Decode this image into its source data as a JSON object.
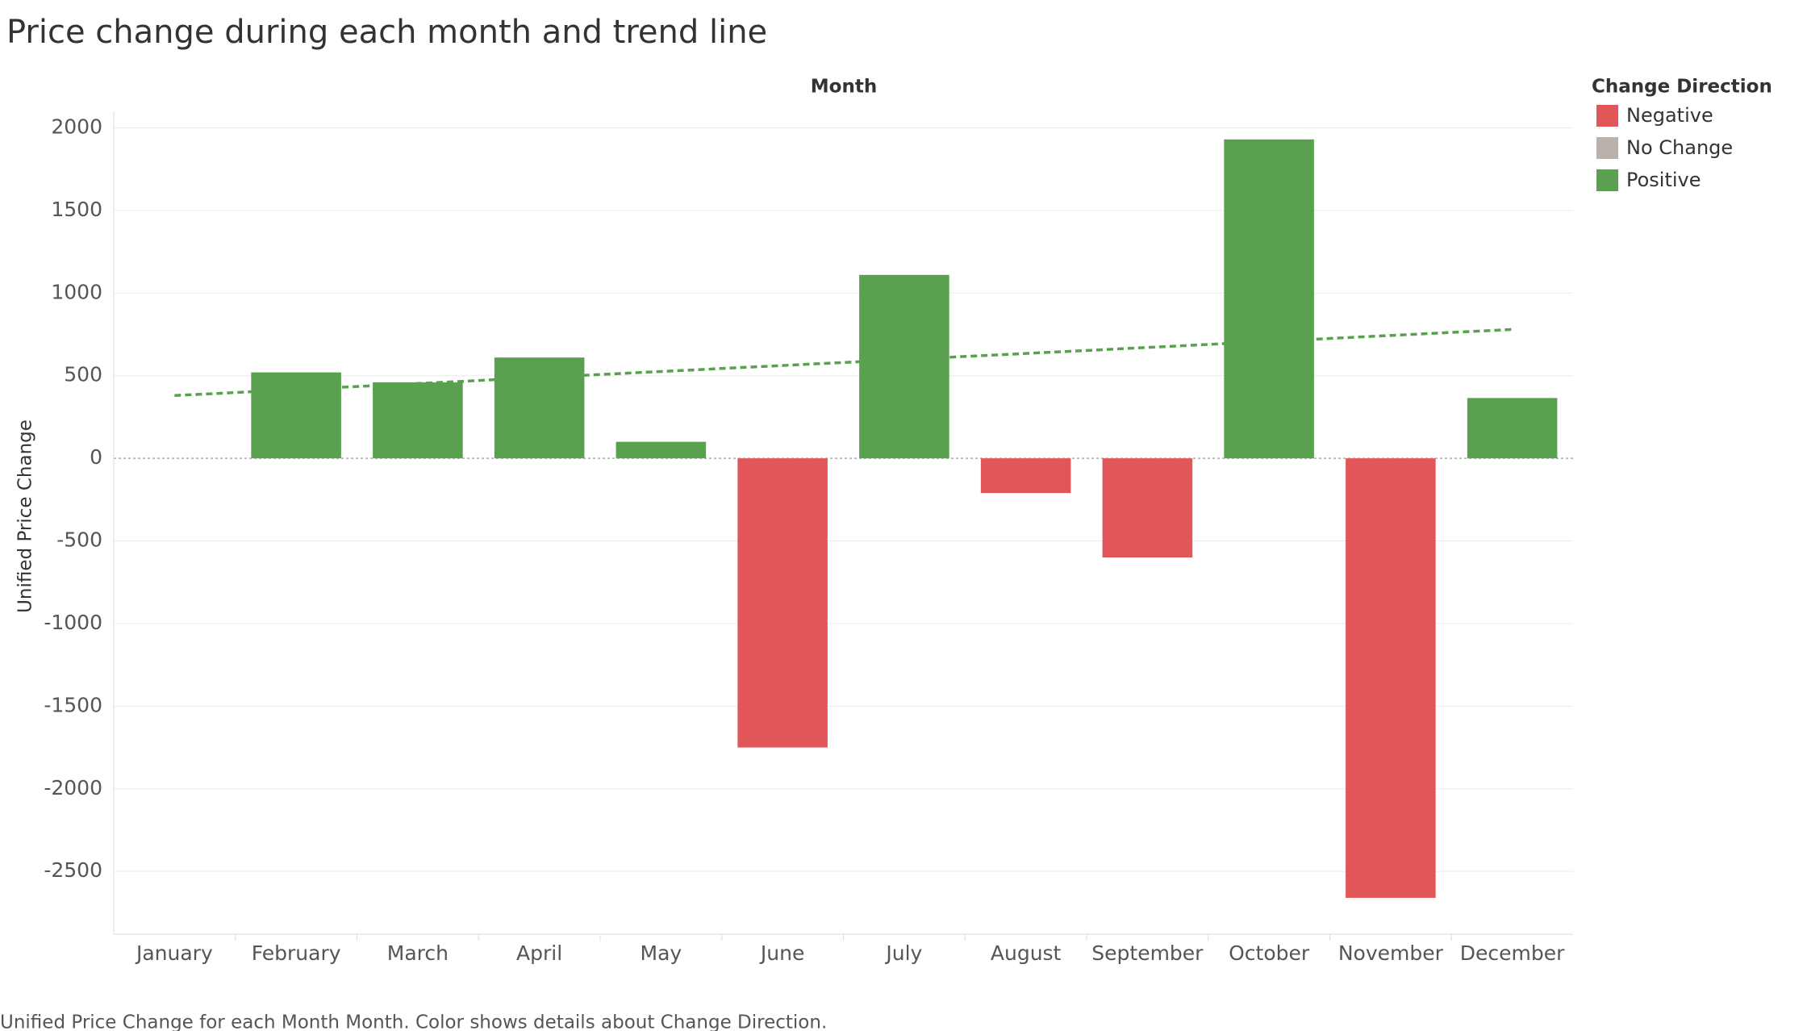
{
  "chart_data": {
    "type": "bar",
    "title": "Price change during each month  and trend line",
    "x_header": "Month",
    "y_label": "Unified Price Change",
    "caption": "Unified Price Change for each Month Month.  Color shows details about Change Direction.",
    "categories": [
      "January",
      "February",
      "March",
      "April",
      "May",
      "June",
      "July",
      "August",
      "September",
      "October",
      "November",
      "December"
    ],
    "values": [
      0,
      520,
      460,
      610,
      100,
      -1750,
      1110,
      -210,
      -600,
      1930,
      -2660,
      365
    ],
    "ylim": [
      -2880,
      2100
    ],
    "yticks": [
      -2500,
      -2000,
      -1500,
      -1000,
      -500,
      0,
      500,
      1000,
      1500,
      2000
    ],
    "grid": true,
    "legend_title": "Change Direction",
    "legend": [
      {
        "name": "Negative",
        "color": "#e15759"
      },
      {
        "name": "No Change",
        "color": "#bab0ac"
      },
      {
        "name": "Positive",
        "color": "#59a14f"
      }
    ],
    "trend_line": {
      "start": 380,
      "end": 780,
      "color": "#59a14f"
    }
  }
}
